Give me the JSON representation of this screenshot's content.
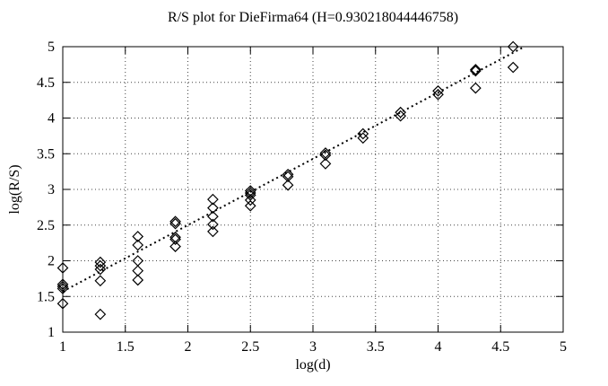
{
  "page": {
    "background": "#ffffff",
    "foreground": "#000000"
  },
  "chart_data": {
    "type": "scatter",
    "title": "R/S plot for DieFirma64 (H=0.930218044446758)",
    "xlabel": "log(d)",
    "ylabel": "log(R/S)",
    "xlim": [
      1,
      5
    ],
    "ylim": [
      1,
      5
    ],
    "xticks": [
      1,
      1.5,
      2,
      2.5,
      3,
      3.5,
      4,
      4.5,
      5
    ],
    "yticks": [
      1,
      1.5,
      2,
      2.5,
      3,
      3.5,
      4,
      4.5,
      5
    ],
    "grid": true,
    "legend": "none",
    "marker": "open-diamond",
    "hurst_exponent": 0.930218044446758,
    "colors": {
      "points": "#000000",
      "grid": "#444444",
      "fit_line": "#000000",
      "background": "#ffffff"
    },
    "points": [
      [
        1.0,
        1.9
      ],
      [
        1.0,
        1.67
      ],
      [
        1.0,
        1.64
      ],
      [
        1.0,
        1.61
      ],
      [
        1.0,
        1.4
      ],
      [
        1.3,
        1.98
      ],
      [
        1.3,
        1.93
      ],
      [
        1.3,
        1.88
      ],
      [
        1.3,
        1.72
      ],
      [
        1.3,
        1.25
      ],
      [
        1.6,
        2.34
      ],
      [
        1.6,
        2.22
      ],
      [
        1.6,
        2.0
      ],
      [
        1.6,
        1.86
      ],
      [
        1.6,
        1.73
      ],
      [
        1.9,
        2.55
      ],
      [
        1.9,
        2.52
      ],
      [
        1.9,
        2.33
      ],
      [
        1.9,
        2.3
      ],
      [
        1.9,
        2.2
      ],
      [
        2.2,
        2.86
      ],
      [
        2.2,
        2.74
      ],
      [
        2.2,
        2.62
      ],
      [
        2.2,
        2.51
      ],
      [
        2.2,
        2.41
      ],
      [
        2.5,
        2.98
      ],
      [
        2.5,
        2.95
      ],
      [
        2.5,
        2.92
      ],
      [
        2.5,
        2.85
      ],
      [
        2.5,
        2.77
      ],
      [
        2.8,
        3.21
      ],
      [
        2.8,
        3.18
      ],
      [
        2.8,
        3.06
      ],
      [
        3.1,
        3.51
      ],
      [
        3.1,
        3.48
      ],
      [
        3.1,
        3.36
      ],
      [
        3.4,
        3.78
      ],
      [
        3.4,
        3.72
      ],
      [
        3.7,
        4.08
      ],
      [
        3.7,
        4.03
      ],
      [
        4.0,
        4.38
      ],
      [
        4.0,
        4.33
      ],
      [
        4.3,
        4.68
      ],
      [
        4.3,
        4.66
      ],
      [
        4.3,
        4.42
      ],
      [
        4.6,
        5.0
      ],
      [
        4.6,
        4.71
      ]
    ],
    "fit_line": {
      "x1": 1.0,
      "y1": 1.57,
      "x2": 4.68,
      "y2": 4.99,
      "slope": 0.930218044446758,
      "style": "dotted"
    }
  }
}
